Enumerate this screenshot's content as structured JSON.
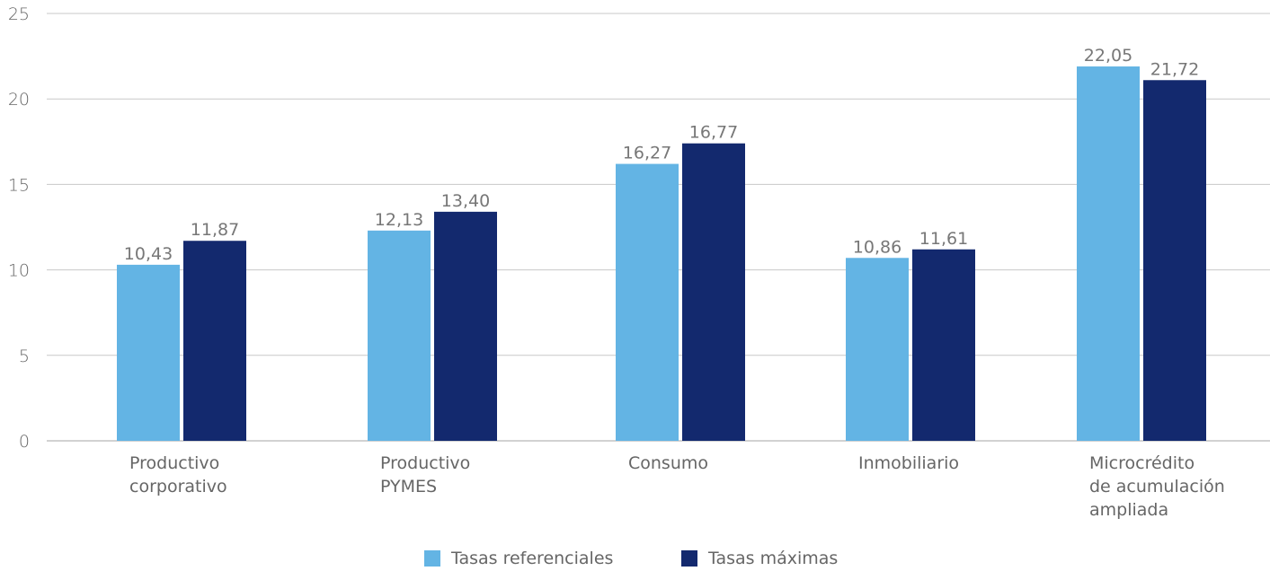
{
  "chart_data": {
    "type": "bar",
    "categories": [
      [
        "Productivo",
        "corporativo"
      ],
      [
        "Productivo",
        "PYMES"
      ],
      [
        "Consumo"
      ],
      [
        "Inmobiliario"
      ],
      [
        "Microcrédito",
        "de acumulación",
        "ampliada"
      ]
    ],
    "series": [
      {
        "name": "Tasas referenciales",
        "color": "#63b4e4",
        "values": [
          10.43,
          12.13,
          16.27,
          10.86,
          22.05
        ],
        "labels": [
          "10,43",
          "12,13",
          "16,27",
          "10,86",
          "22,05"
        ],
        "bar_heights": [
          10.3,
          12.3,
          16.2,
          10.7,
          21.9
        ]
      },
      {
        "name": "Tasas máximas",
        "color": "#13296e",
        "values": [
          11.87,
          13.4,
          16.77,
          11.61,
          21.72
        ],
        "labels": [
          "11,87",
          "13,40",
          "16,77",
          "11,61",
          "21,72"
        ],
        "bar_heights": [
          11.7,
          13.4,
          17.4,
          11.2,
          21.1
        ]
      }
    ],
    "yticks": [
      "0",
      "5",
      "10",
      "15",
      "20",
      "25"
    ],
    "ylim": [
      0,
      25
    ],
    "title": "",
    "xlabel": "",
    "ylabel": "",
    "grid": true,
    "legend": "bottom-center"
  }
}
